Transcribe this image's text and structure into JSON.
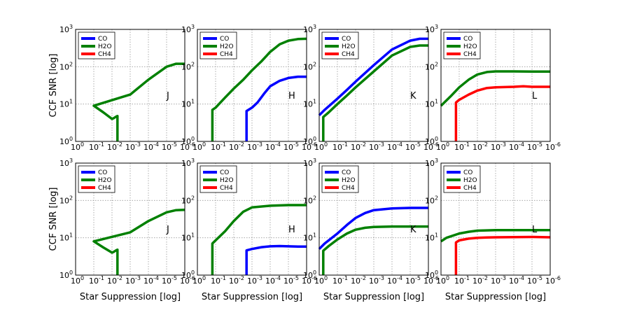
{
  "chart_data": {
    "type": "line",
    "layout": "2x4 grid",
    "xlabel": "Star Suppression [log]",
    "ylabel": "CCF SNR [log]",
    "x_scale": "log, reversed",
    "y_scale": "log",
    "xlim": [
      1,
      1e-06
    ],
    "ylim": [
      1,
      1000
    ],
    "grid": true,
    "legend_placement": "top-left",
    "x_tick_labels": [
      {
        "base": "10",
        "exp": "0"
      },
      {
        "base": "10",
        "exp": "-1"
      },
      {
        "base": "10",
        "exp": "-2"
      },
      {
        "base": "10",
        "exp": "-3"
      },
      {
        "base": "10",
        "exp": "-4"
      },
      {
        "base": "10",
        "exp": "-5"
      },
      {
        "base": "10",
        "exp": "-6"
      }
    ],
    "y_tick_labels": [
      {
        "base": "10",
        "exp": "0"
      },
      {
        "base": "10",
        "exp": "1"
      },
      {
        "base": "10",
        "exp": "2"
      },
      {
        "base": "10",
        "exp": "3"
      }
    ],
    "species_colors": {
      "CO": "#0000ff",
      "H2O": "#008000",
      "CH4": "#ff0000"
    },
    "panels": [
      {
        "band": "J",
        "legend": [
          "CO",
          "H2O",
          "CH4"
        ],
        "series": [
          {
            "name": "H2O",
            "x": [
              0.005,
              0.005,
              0.006,
              0.008,
              0.01,
              0.03,
              0.1,
              0.001,
              0.0001,
              1e-05,
              3e-06,
              1e-06
            ],
            "y": [
              1,
              4.8,
              4.6,
              4.2,
              4.0,
              6,
              9,
              18,
              45,
              100,
              120,
              120
            ]
          }
        ]
      },
      {
        "band": "H",
        "legend": [
          "CO",
          "H2O",
          "CH4"
        ],
        "series": [
          {
            "name": "CO",
            "x": [
              0.002,
              0.002,
              0.001,
              0.0005,
              0.0002,
              0.0001,
              3e-05,
              1e-05,
              3e-06,
              1e-06
            ],
            "y": [
              1,
              6.5,
              8,
              11,
              20,
              30,
              42,
              50,
              54,
              54
            ]
          },
          {
            "name": "H2O",
            "x": [
              0.15,
              0.15,
              0.1,
              0.03,
              0.01,
              0.003,
              0.001,
              0.0003,
              0.0001,
              3e-05,
              1e-05,
              3e-06,
              1e-06
            ],
            "y": [
              1,
              7,
              8,
              15,
              26,
              45,
              80,
              140,
              250,
              400,
              500,
              550,
              560
            ]
          }
        ]
      },
      {
        "band": "K",
        "legend": [
          "CO",
          "H2O",
          "CH4"
        ],
        "series": [
          {
            "name": "CO",
            "x": [
              1,
              0.5,
              0.1,
              0.03,
              0.01,
              0.001,
              0.0001,
              1e-05,
              3e-06,
              1e-06
            ],
            "y": [
              5,
              7,
              14,
              24,
              40,
              110,
              290,
              500,
              560,
              560
            ]
          },
          {
            "name": "H2O",
            "x": [
              0.6,
              0.6,
              0.3,
              0.1,
              0.03,
              0.01,
              0.001,
              0.0001,
              1e-05,
              3e-06,
              1e-06
            ],
            "y": [
              1,
              4.5,
              6,
              10,
              17,
              28,
              75,
              200,
              340,
              370,
              370
            ]
          }
        ]
      },
      {
        "band": "L",
        "legend": [
          "CO",
          "H2O",
          "CH4"
        ],
        "series": [
          {
            "name": "H2O",
            "x": [
              1,
              0.3,
              0.1,
              0.03,
              0.01,
              0.003,
              0.001,
              0.0001,
              1e-05,
              1e-06
            ],
            "y": [
              9,
              16,
              28,
              45,
              62,
              72,
              75,
              75,
              74,
              74
            ]
          },
          {
            "name": "CH4",
            "x": [
              0.15,
              0.15,
              0.1,
              0.03,
              0.01,
              0.003,
              0.001,
              0.0001,
              3e-05,
              1e-05,
              1e-06
            ],
            "y": [
              1,
              11,
              13,
              18,
              23,
              27,
              28,
              29,
              30,
              29,
              29
            ]
          }
        ]
      },
      {
        "band": "J",
        "legend": [
          "CO",
          "H2O",
          "CH4"
        ],
        "series": [
          {
            "name": "H2O",
            "x": [
              0.005,
              0.005,
              0.006,
              0.008,
              0.01,
              0.03,
              0.1,
              0.001,
              0.0001,
              1e-05,
              3e-06,
              1e-06
            ],
            "y": [
              1,
              4.8,
              4.6,
              4.2,
              4.0,
              5.5,
              8,
              14,
              28,
              48,
              55,
              56
            ]
          }
        ]
      },
      {
        "band": "H",
        "legend": [
          "CO",
          "H2O",
          "CH4"
        ],
        "series": [
          {
            "name": "CO",
            "x": [
              0.002,
              0.002,
              0.001,
              0.0003,
              0.0001,
              3e-05,
              1e-05,
              3e-06,
              1e-06
            ],
            "y": [
              1,
              4.6,
              5,
              5.6,
              5.9,
              6,
              5.9,
              5.8,
              5.8
            ]
          },
          {
            "name": "H2O",
            "x": [
              0.15,
              0.15,
              0.1,
              0.03,
              0.01,
              0.003,
              0.001,
              0.0001,
              1e-05,
              1e-06
            ],
            "y": [
              1,
              7,
              8.5,
              15,
              28,
              50,
              65,
              72,
              75,
              75
            ]
          }
        ]
      },
      {
        "band": "K",
        "legend": [
          "CO",
          "H2O",
          "CH4"
        ],
        "series": [
          {
            "name": "CO",
            "x": [
              1,
              0.5,
              0.1,
              0.03,
              0.01,
              0.003,
              0.001,
              0.0001,
              1e-05,
              1e-06
            ],
            "y": [
              5,
              7,
              13,
              22,
              34,
              46,
              55,
              61,
              63,
              63
            ]
          },
          {
            "name": "H2O",
            "x": [
              0.6,
              0.6,
              0.3,
              0.1,
              0.03,
              0.01,
              0.003,
              0.001,
              0.0001,
              1e-05,
              1e-06
            ],
            "y": [
              1,
              4.5,
              6,
              9,
              13,
              16.5,
              18.5,
              19.5,
              20,
              20,
              20
            ]
          }
        ]
      },
      {
        "band": "L",
        "legend": [
          "CO",
          "H2O",
          "CH4"
        ],
        "series": [
          {
            "name": "H2O",
            "x": [
              1,
              0.5,
              0.1,
              0.03,
              0.01,
              0.001,
              0.0001,
              1e-05,
              1e-06
            ],
            "y": [
              8,
              10,
              13,
              14.5,
              15.5,
              16,
              16,
              16,
              16
            ]
          },
          {
            "name": "CH4",
            "x": [
              0.15,
              0.15,
              0.1,
              0.03,
              0.01,
              0.003,
              0.001,
              0.0001,
              1e-05,
              1e-06
            ],
            "y": [
              1,
              7.5,
              8.5,
              9.5,
              10,
              10.2,
              10.3,
              10.4,
              10.5,
              10.3
            ]
          }
        ]
      }
    ]
  }
}
